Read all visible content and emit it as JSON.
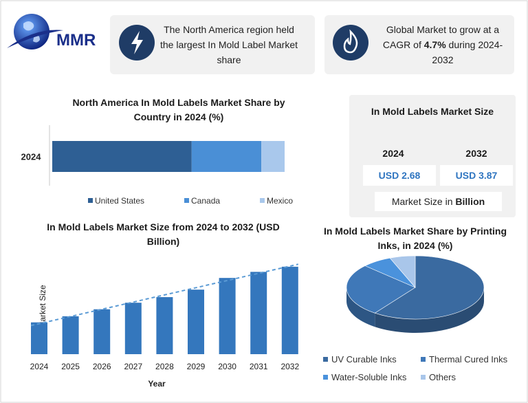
{
  "header": {
    "logo": "MMR",
    "cards": [
      {
        "text": "The North America region held the largest In Mold Label Market share"
      },
      {
        "parts": [
          "Global Market to grow at a CAGR of ",
          "4.7%",
          " during 2024-2032"
        ]
      }
    ]
  },
  "market_size": {
    "title": "In Mold Labels Market Size",
    "columns": [
      {
        "year": "2024",
        "value": "USD 2.68"
      },
      {
        "year": "2032",
        "value": "USD 3.87"
      }
    ],
    "note_parts": [
      "Market Size in ",
      "Billion"
    ]
  },
  "chart_data": [
    {
      "type": "bar",
      "orientation": "horizontal",
      "stacked": true,
      "title": "North America In Mold Labels Market Share by Country in 2024 (%)",
      "categories": [
        "2024"
      ],
      "xlim": [
        0,
        100
      ],
      "series": [
        {
          "name": "United States",
          "color": "#2e5f94",
          "values": [
            60
          ]
        },
        {
          "name": "Canada",
          "color": "#4a8fd6",
          "values": [
            30
          ]
        },
        {
          "name": "Mexico",
          "color": "#a9c8ec",
          "values": [
            10
          ]
        }
      ]
    },
    {
      "type": "bar",
      "orientation": "vertical",
      "title": "In Mold Labels Market Size from 2024 to 2032 (USD Billion)",
      "y_label": "Market Size",
      "x_label": "Year",
      "categories": [
        "2024",
        "2025",
        "2026",
        "2027",
        "2028",
        "2029",
        "2030",
        "2031",
        "2032"
      ],
      "values": [
        2.68,
        2.81,
        2.96,
        3.1,
        3.22,
        3.38,
        3.63,
        3.76,
        3.87
      ],
      "ylim": [
        2,
        4
      ],
      "color": "#3477bd",
      "trend_line": true,
      "trend_color": "#5b9bd5"
    },
    {
      "type": "pie",
      "title": "In Mold Labels Market Share by Printing Inks, in 2024 (%)",
      "categories": [
        "UV Curable Inks",
        "Thermal Cured Inks",
        "Water-Soluble Inks",
        "Others"
      ],
      "values": [
        60,
        27,
        7,
        6
      ],
      "colors": [
        "#3a6aa0",
        "#3f78b8",
        "#4a92dc",
        "#a9c6ea"
      ]
    }
  ]
}
